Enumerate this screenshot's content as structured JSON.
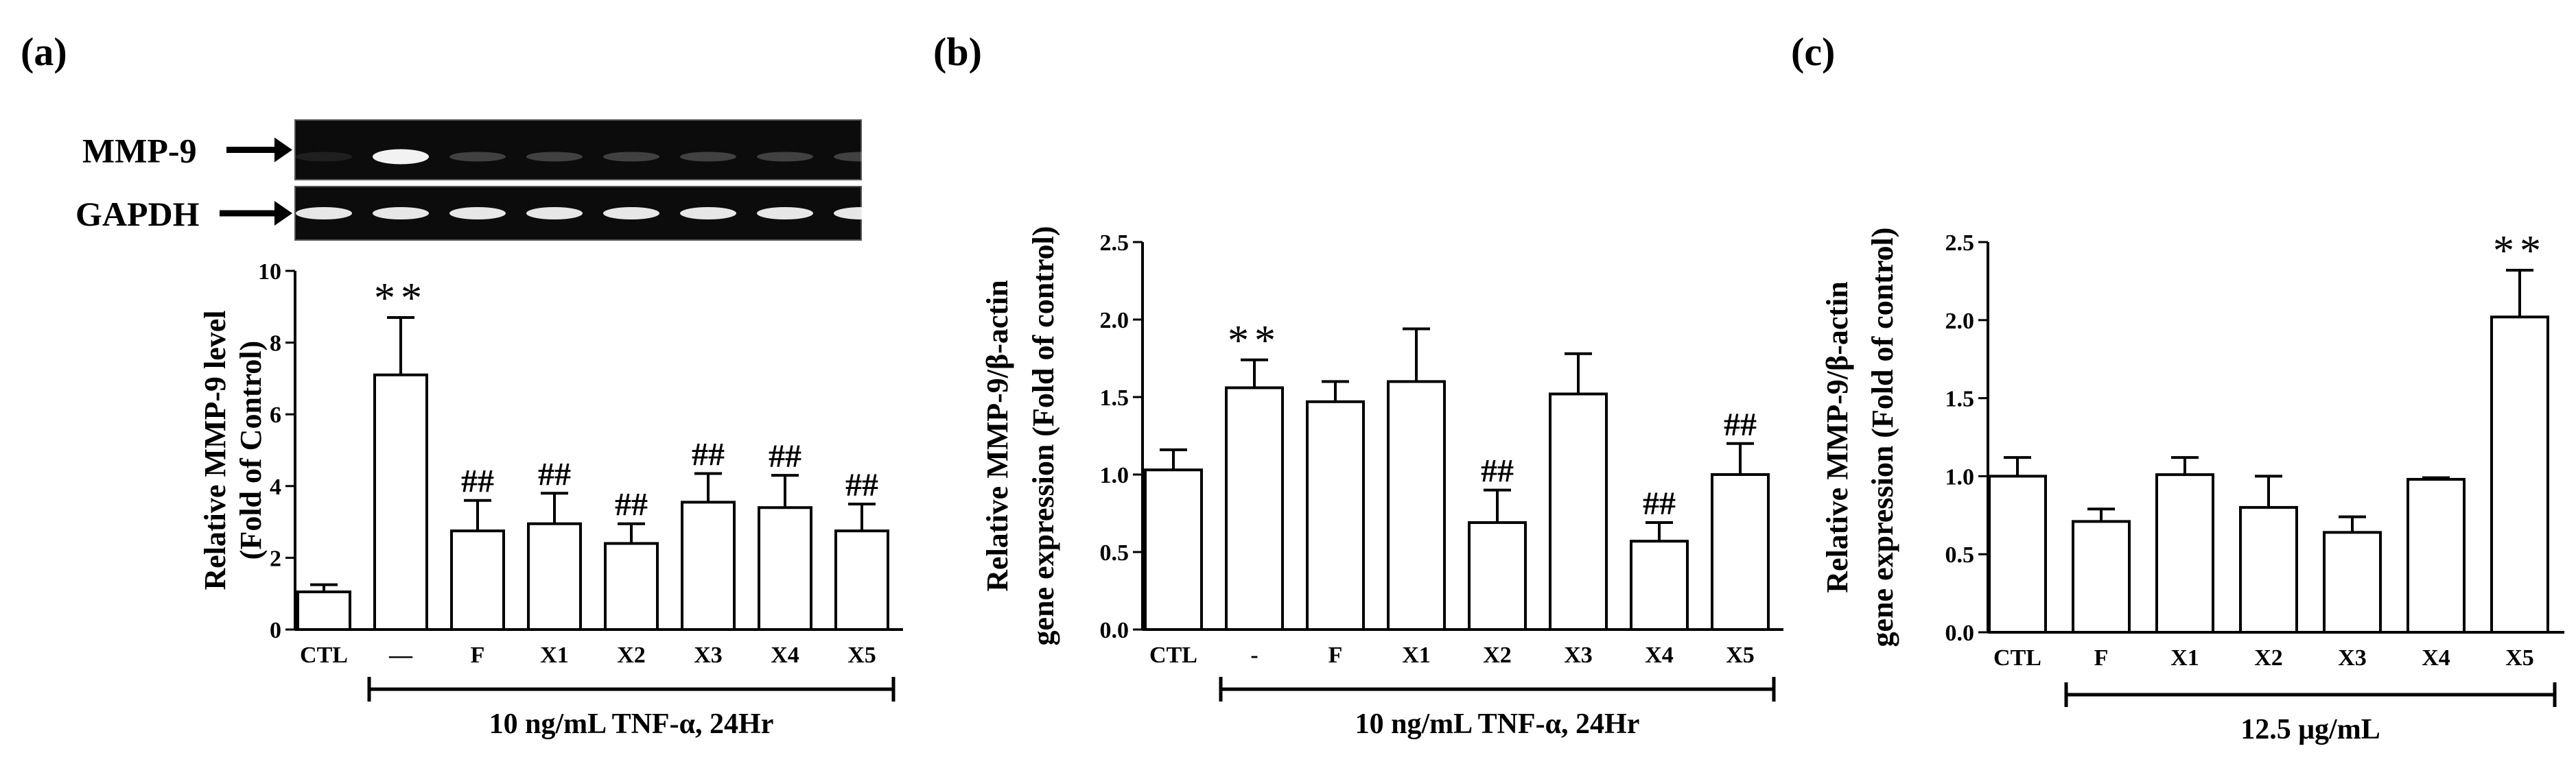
{
  "chart_data": [
    {
      "panel": "(a)",
      "type": "bar",
      "blot": {
        "rows": [
          "MMP-9",
          "GAPDH"
        ]
      },
      "categories": [
        "CTL",
        "—",
        "F",
        "X1",
        "X2",
        "X3",
        "X4",
        "X5"
      ],
      "values": [
        1.05,
        7.1,
        2.75,
        2.95,
        2.4,
        3.55,
        3.4,
        2.75
      ],
      "errors": [
        0.2,
        1.6,
        0.85,
        0.85,
        0.55,
        0.8,
        0.9,
        0.75
      ],
      "annotations": [
        "",
        "**",
        "##",
        "##",
        "##",
        "##",
        "##",
        "##"
      ],
      "ylabel_lines": [
        "Relative MMP-9 level",
        "(Fold of Control)"
      ],
      "yticks": [
        0,
        2,
        4,
        6,
        8,
        10
      ],
      "yticklabels": [
        "0",
        "2",
        "4",
        "6",
        "8",
        "10"
      ],
      "ylim": [
        0,
        10
      ],
      "bracket_label": "10 ng/mL TNF-α, 24Hr",
      "bracket_from": 1,
      "bracket_to": 7
    },
    {
      "panel": "(b)",
      "type": "bar",
      "categories": [
        "CTL",
        "-",
        "F",
        "X1",
        "X2",
        "X3",
        "X4",
        "X5"
      ],
      "values": [
        1.03,
        1.56,
        1.47,
        1.6,
        0.69,
        1.52,
        0.57,
        1.0
      ],
      "errors": [
        0.13,
        0.18,
        0.13,
        0.34,
        0.21,
        0.26,
        0.12,
        0.2
      ],
      "annotations": [
        "",
        "**",
        "",
        "",
        "##",
        "",
        "##",
        "##"
      ],
      "ylabel_lines": [
        "Relative MMP-9/β-actin",
        "gene expression (Fold of control)"
      ],
      "yticks": [
        0,
        0.5,
        1,
        1.5,
        2,
        2.5
      ],
      "yticklabels": [
        "0.0",
        "0.5",
        "1.0",
        "1.5",
        "2.0",
        "2.5"
      ],
      "ylim": [
        0,
        2.5
      ],
      "bracket_label": "10 ng/mL TNF-α, 24Hr",
      "bracket_from": 1,
      "bracket_to": 7
    },
    {
      "panel": "(c)",
      "type": "bar",
      "categories": [
        "CTL",
        "F",
        "X1",
        "X2",
        "X3",
        "X4",
        "X5"
      ],
      "values": [
        1.0,
        0.71,
        1.01,
        0.8,
        0.64,
        0.98,
        2.02
      ],
      "errors": [
        0.12,
        0.08,
        0.11,
        0.2,
        0.1,
        0.01,
        0.3
      ],
      "annotations": [
        "",
        "",
        "",
        "",
        "",
        "",
        "**"
      ],
      "ylabel_lines": [
        "Relative MMP-9/β-actin",
        "gene expression (Fold of control)"
      ],
      "yticks": [
        0,
        0.5,
        1,
        1.5,
        2,
        2.5
      ],
      "yticklabels": [
        "0.0",
        "0.5",
        "1.0",
        "1.5",
        "2.0",
        "2.5"
      ],
      "ylim": [
        0,
        2.5
      ],
      "bracket_label": "12.5 μg/mL",
      "bracket_from": 1,
      "bracket_to": 6
    }
  ]
}
